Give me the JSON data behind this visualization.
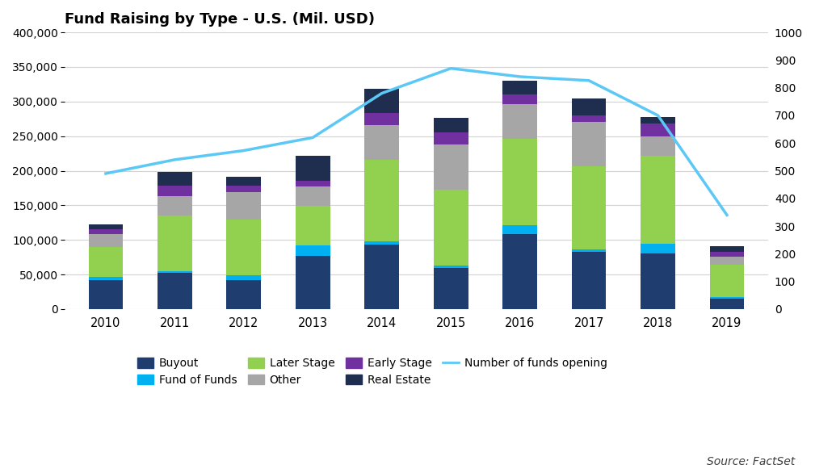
{
  "title": "Fund Raising by Type - U.S. (Mil. USD)",
  "years": [
    2010,
    2011,
    2012,
    2013,
    2014,
    2015,
    2016,
    2017,
    2018,
    2019
  ],
  "buyout": [
    42000,
    52000,
    42000,
    77000,
    93000,
    60000,
    108000,
    83000,
    80000,
    15000
  ],
  "fund_of_funds": [
    5000,
    3000,
    7000,
    15000,
    5000,
    3000,
    13000,
    3000,
    14000,
    2000
  ],
  "later_stage": [
    43000,
    80000,
    80000,
    57000,
    118000,
    110000,
    125000,
    120000,
    128000,
    47000
  ],
  "other": [
    18000,
    28000,
    40000,
    28000,
    50000,
    65000,
    50000,
    65000,
    28000,
    12000
  ],
  "early_stage": [
    7000,
    15000,
    10000,
    8000,
    18000,
    17000,
    14000,
    9000,
    18000,
    7000
  ],
  "real_estate": [
    7000,
    20000,
    12000,
    37000,
    35000,
    22000,
    20000,
    25000,
    10000,
    8000
  ],
  "num_funds": [
    490,
    540,
    573,
    620,
    780,
    870,
    840,
    826,
    700,
    340
  ],
  "buyout_color": "#1f3d6e",
  "fund_of_funds_color": "#00b0f0",
  "later_stage_color": "#92d050",
  "other_color": "#a6a6a6",
  "early_stage_color": "#7030a0",
  "real_estate_color": "#1f2d4e",
  "line_color": "#5bc8f5",
  "rhs_color": "#bf8f00",
  "ylim_left": [
    0,
    400000
  ],
  "ylim_right": [
    0,
    1000
  ],
  "yticks_left": [
    0,
    50000,
    100000,
    150000,
    200000,
    250000,
    300000,
    350000,
    400000
  ],
  "yticks_right": [
    0,
    100,
    200,
    300,
    400,
    500,
    600,
    700,
    800,
    900,
    1000
  ],
  "background_color": "#ffffff",
  "grid_color": "#d3d3d3",
  "source_text": "Source: FactSet"
}
